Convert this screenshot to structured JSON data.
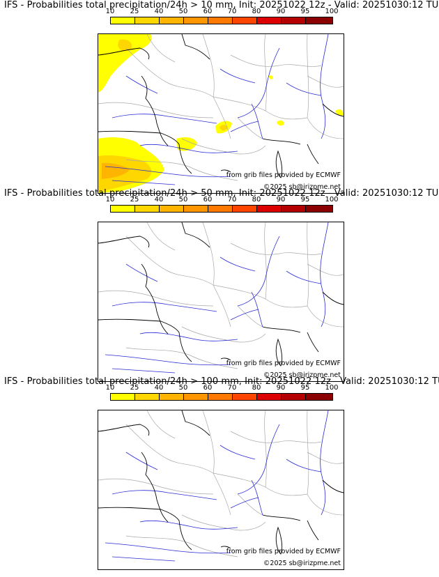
{
  "colorbar": {
    "ticks": [
      "10",
      "25",
      "40",
      "50",
      "60",
      "70",
      "80",
      "90",
      "95",
      "100"
    ],
    "colors": [
      "#ffff00",
      "#ffd700",
      "#ffb400",
      "#ff9600",
      "#ff7800",
      "#ff4500",
      "#dc0000",
      "#b40000",
      "#8b0000"
    ]
  },
  "credits": {
    "source": "from grib files provided by ECMWF",
    "copyright": "©2025 sb@irizpme.net"
  },
  "panels": [
    {
      "title": "IFS - Probabilities total precipitation/24h > 10 mm, Init: 20251022 12z - Valid: 20251030:12 TU",
      "threshold_mm": 10
    },
    {
      "title": "IFS - Probabilities total precipitation/24h > 50 mm, Init: 20251022 12z - Valid: 20251030:12 TU",
      "threshold_mm": 50
    },
    {
      "title": "IFS - Probabilities total precipitation/24h > 100 mm, Init: 20251022 12z - Valid: 20251030:12 TU",
      "threshold_mm": 100
    }
  ],
  "map": {
    "coast_color": "#000000",
    "border_color": "#a8a8a8",
    "river_color": "#2a2ad6"
  }
}
